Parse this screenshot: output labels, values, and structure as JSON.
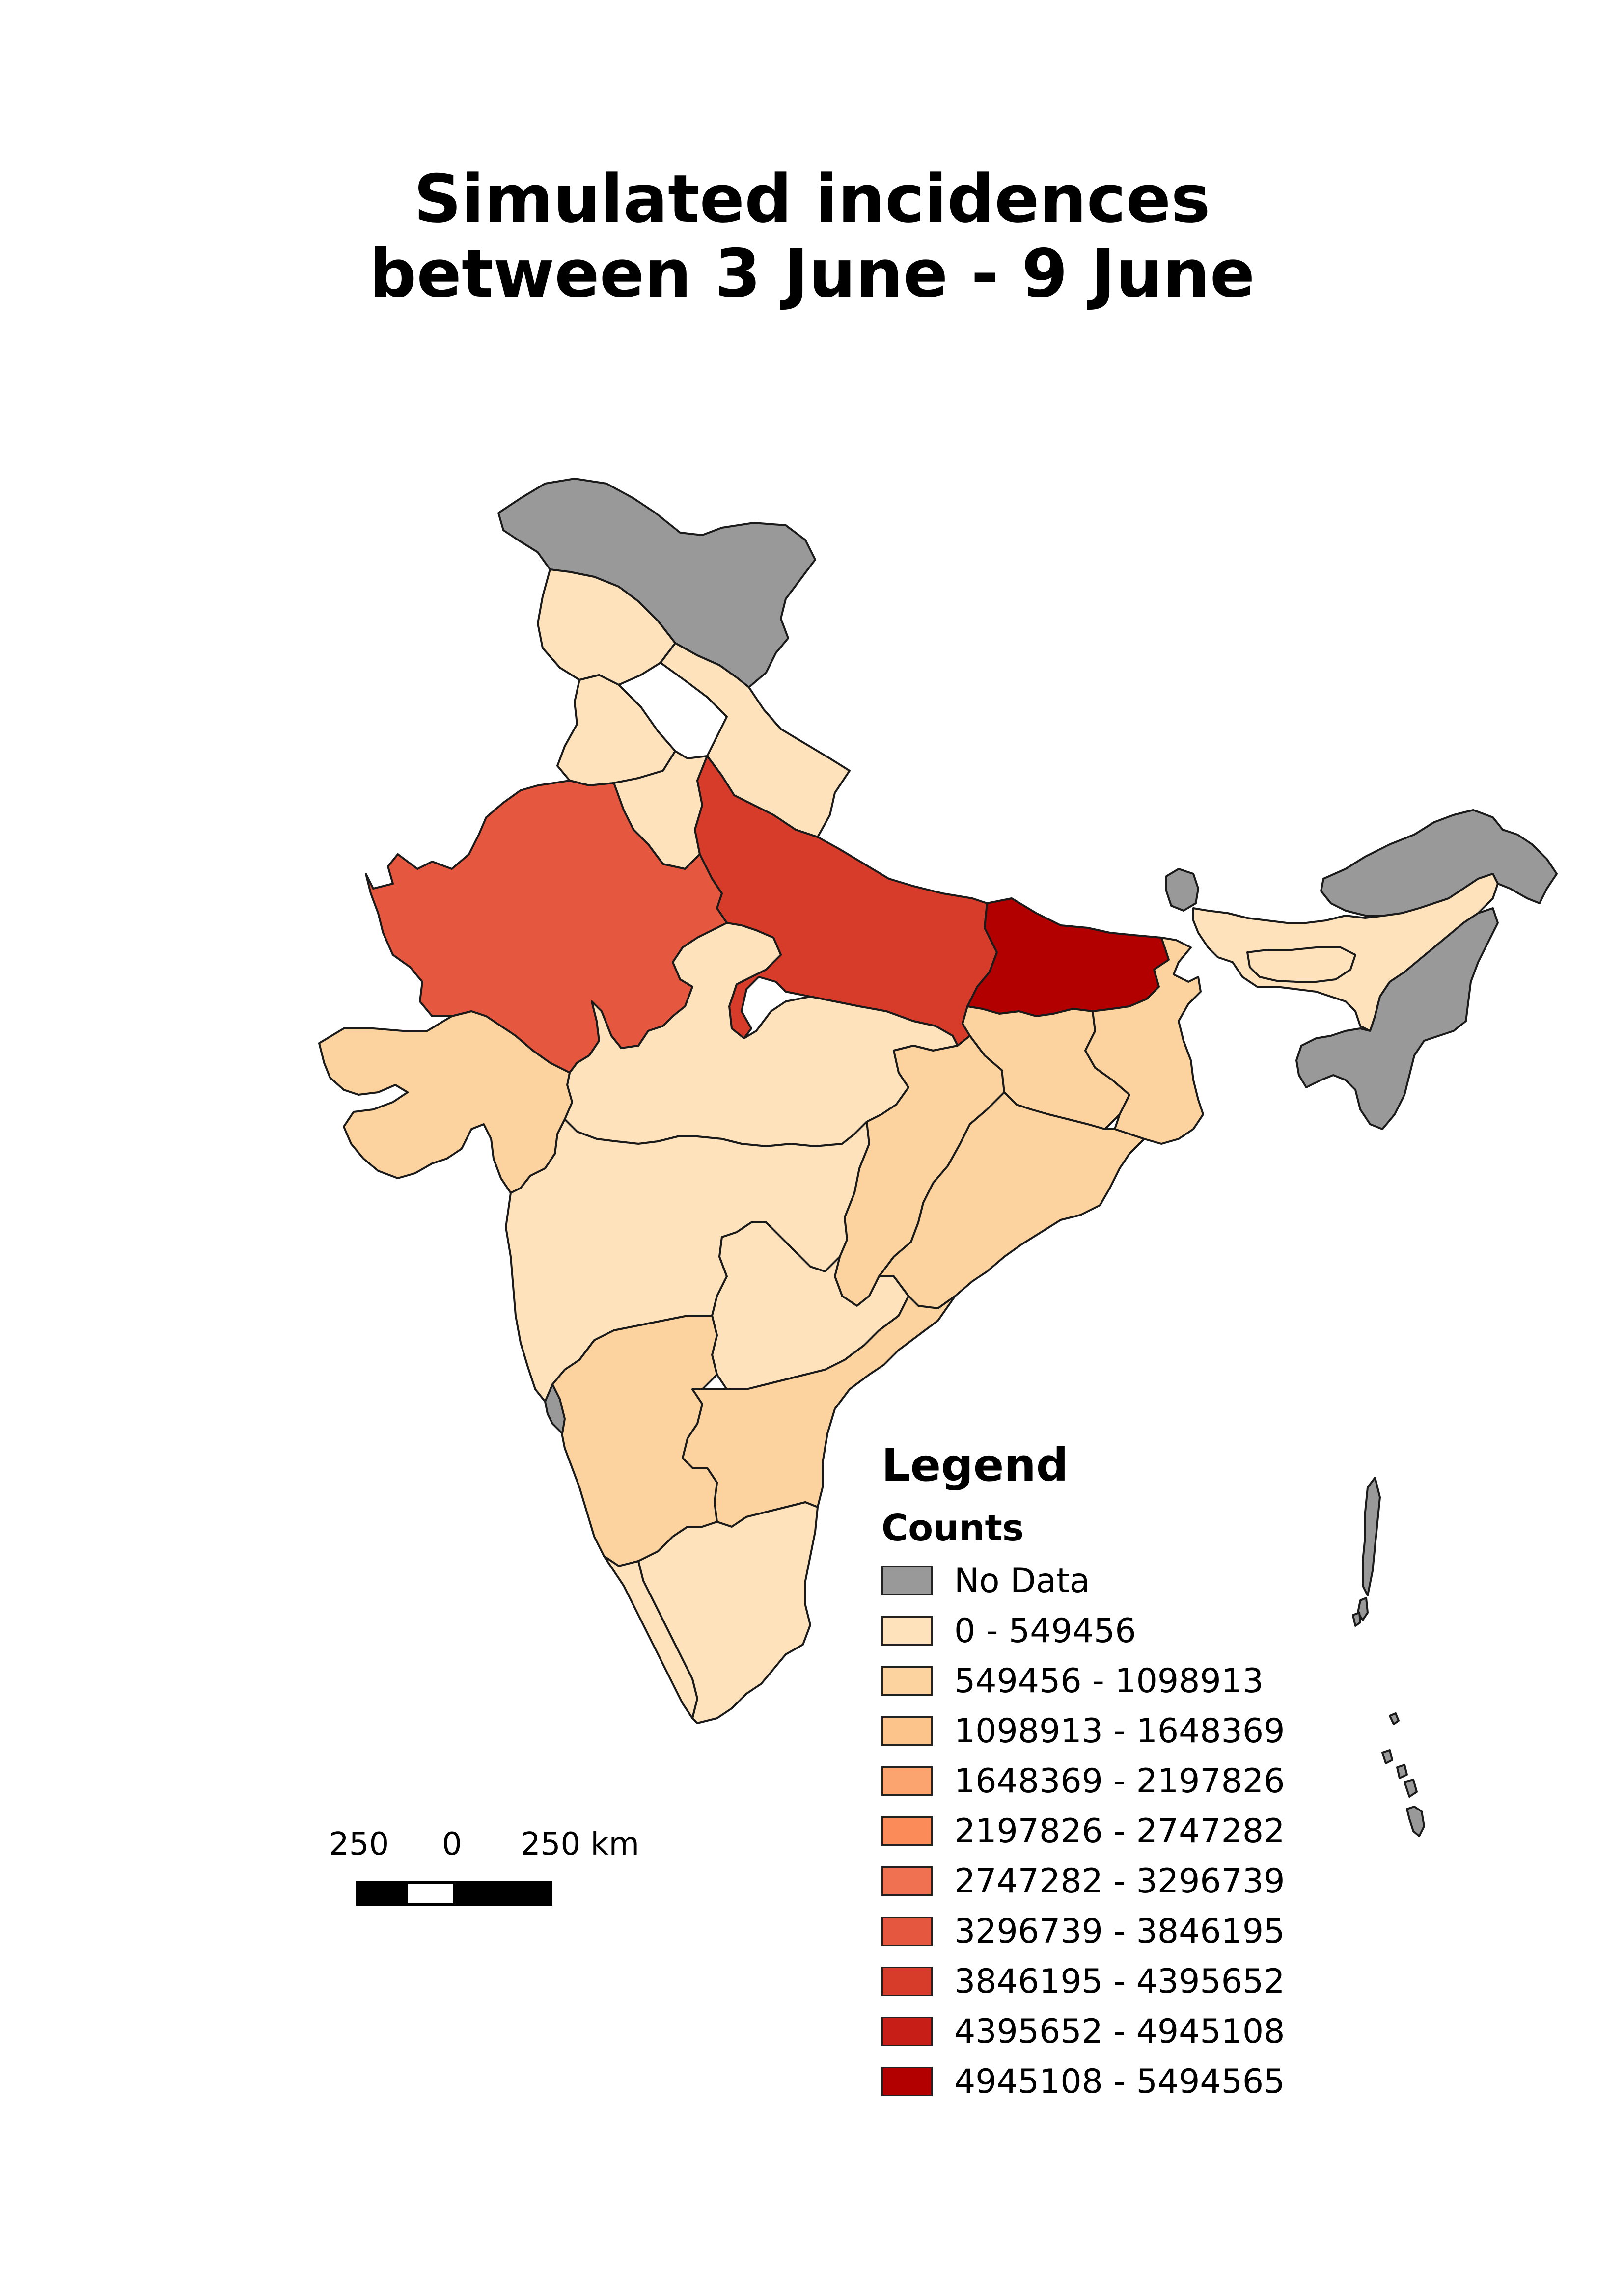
{
  "title": {
    "line1": "Simulated incidences",
    "line2": "between 3 June - 9 June"
  },
  "legend": {
    "title": "Legend",
    "subtitle": "Counts",
    "items": [
      {
        "label": "No Data",
        "color": "#999999"
      },
      {
        "label": "0 - 549456",
        "color": "#fde2bb"
      },
      {
        "label": "549456 - 1098913",
        "color": "#fcd39e"
      },
      {
        "label": "1098913 - 1648369",
        "color": "#fcc48b"
      },
      {
        "label": "1648369 - 2197826",
        "color": "#fca46f"
      },
      {
        "label": "2197826 - 2747282",
        "color": "#fb8c5a"
      },
      {
        "label": "2747282 - 3296739",
        "color": "#f07052"
      },
      {
        "label": "3296739 - 3846195",
        "color": "#e5573e"
      },
      {
        "label": "3846195 - 4395652",
        "color": "#d63c29"
      },
      {
        "label": "4395652 - 4945108",
        "color": "#c71f17"
      },
      {
        "label": "4945108 - 5494565",
        "color": "#b20000"
      }
    ]
  },
  "scalebar": {
    "label_left": "250",
    "label_mid": "0",
    "label_right": "250 km"
  },
  "map": {
    "regions": [
      {
        "id": "jammu-kashmir",
        "class": "No Data"
      },
      {
        "id": "himachal-pradesh",
        "class": "0 - 549456"
      },
      {
        "id": "punjab",
        "class": "0 - 549456"
      },
      {
        "id": "uttarakhand",
        "class": "0 - 549456"
      },
      {
        "id": "haryana",
        "class": "0 - 549456"
      },
      {
        "id": "rajasthan",
        "class": "3296739 - 3846195"
      },
      {
        "id": "uttar-pradesh",
        "class": "3846195 - 4395652"
      },
      {
        "id": "bihar",
        "class": "4945108 - 5494565"
      },
      {
        "id": "madhya-pradesh",
        "class": "0 - 549456"
      },
      {
        "id": "gujarat",
        "class": "549456 - 1098913"
      },
      {
        "id": "maharashtra",
        "class": "0 - 549456"
      },
      {
        "id": "chhattisgarh",
        "class": "549456 - 1098913"
      },
      {
        "id": "jharkhand",
        "class": "549456 - 1098913"
      },
      {
        "id": "west-bengal",
        "class": "549456 - 1098913"
      },
      {
        "id": "odisha",
        "class": "549456 - 1098913"
      },
      {
        "id": "telangana",
        "class": "0 - 549456"
      },
      {
        "id": "andhra-pradesh",
        "class": "549456 - 1098913"
      },
      {
        "id": "karnataka",
        "class": "549456 - 1098913"
      },
      {
        "id": "kerala",
        "class": "0 - 549456"
      },
      {
        "id": "tamil-nadu",
        "class": "0 - 549456"
      },
      {
        "id": "goa",
        "class": "No Data"
      },
      {
        "id": "sikkim",
        "class": "No Data"
      },
      {
        "id": "assam",
        "class": "0 - 549456"
      },
      {
        "id": "arunachal-pradesh",
        "class": "No Data"
      },
      {
        "id": "meghalaya",
        "class": "0 - 549456"
      },
      {
        "id": "northeast-south",
        "class": "No Data"
      },
      {
        "id": "andaman-nicobar",
        "class": "No Data"
      }
    ]
  }
}
